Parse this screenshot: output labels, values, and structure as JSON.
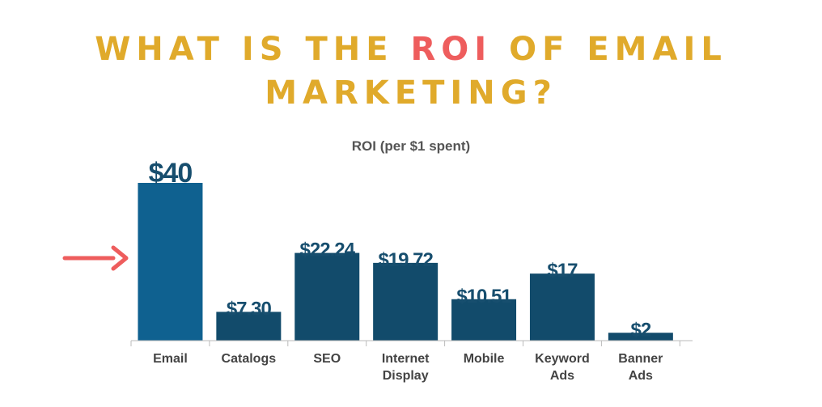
{
  "headline": {
    "line1_pre": "WHAT IS THE ",
    "line1_accent": "ROI",
    "line1_post": " OF EMAIL",
    "line2": "MARKETING?"
  },
  "colors": {
    "headline": "#E0AA2B",
    "headline_accent": "#EE5D5D",
    "arrow": "#EE5D5D",
    "highlight_bar": "#0F6190",
    "bar": "#124B6B",
    "data_label": "#174E6E"
  },
  "icons": {
    "pointer": "arrow-right-icon"
  },
  "chart_data": {
    "type": "bar",
    "title": "ROI (per $1 spent)",
    "categories": [
      "Email",
      "Catalogs",
      "SEO",
      "Internet Display",
      "Mobile",
      "Keyword Ads",
      "Banner Ads"
    ],
    "values": [
      40,
      7.3,
      22.24,
      19.72,
      10.51,
      17,
      2
    ],
    "data_labels": [
      "$40",
      "$7.30",
      "$22.24",
      "$19.72",
      "$10.51",
      "$17",
      "$2"
    ],
    "highlight": "Email",
    "ylim": [
      0,
      40
    ],
    "grid": false,
    "legend": "none"
  }
}
